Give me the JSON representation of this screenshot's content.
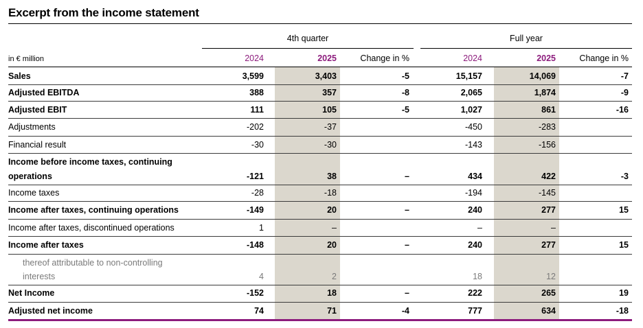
{
  "title": "Excerpt from the income statement",
  "groups": {
    "q4": "4th quarter",
    "fy": "Full year"
  },
  "unit_label": "in € million",
  "columns": [
    "2024",
    "2025",
    "Change in %",
    "2024",
    "2025",
    "Change in %"
  ],
  "colors": {
    "accent": "#8c1b7c",
    "shade": "#dbd7cd",
    "muted_text": "#7a7a7a"
  },
  "rows": [
    {
      "label": "Sales",
      "values": [
        "3,599",
        "3,403",
        "-5",
        "15,157",
        "14,069",
        "-7"
      ]
    },
    {
      "label": "Adjusted EBITDA",
      "values": [
        "388",
        "357",
        "-8",
        "2,065",
        "1,874",
        "-9"
      ]
    },
    {
      "label": "Adjusted EBIT",
      "values": [
        "111",
        "105",
        "-5",
        "1,027",
        "861",
        "-16"
      ]
    },
    {
      "label": "Adjustments",
      "values": [
        "-202",
        "-37",
        "",
        "-450",
        "-283",
        ""
      ]
    },
    {
      "label": "Financial result",
      "values": [
        "-30",
        "-30",
        "",
        "-143",
        "-156",
        ""
      ]
    },
    {
      "label_line1": "Income before income taxes, continuing",
      "label_line2": "operations",
      "values": [
        "-121",
        "38",
        "–",
        "434",
        "422",
        "-3"
      ]
    },
    {
      "label": "Income taxes",
      "values": [
        "-28",
        "-18",
        "",
        "-194",
        "-145",
        ""
      ]
    },
    {
      "label": "Income after taxes, continuing operations",
      "values": [
        "-149",
        "20",
        "–",
        "240",
        "277",
        "15"
      ]
    },
    {
      "label": "Income after taxes, discontinued operations",
      "values": [
        "1",
        "–",
        "",
        "–",
        "–",
        ""
      ]
    },
    {
      "label": "Income after taxes",
      "values": [
        "-148",
        "20",
        "–",
        "240",
        "277",
        "15"
      ]
    },
    {
      "label_line1": "thereof attributable to non-controlling",
      "label_line2": "interests",
      "values": [
        "4",
        "2",
        "",
        "18",
        "12",
        ""
      ]
    },
    {
      "label": "Net Income",
      "values": [
        "-152",
        "18",
        "–",
        "222",
        "265",
        "19"
      ]
    },
    {
      "label": "Adjusted net income",
      "values": [
        "74",
        "71",
        "-4",
        "777",
        "634",
        "-18"
      ]
    }
  ]
}
